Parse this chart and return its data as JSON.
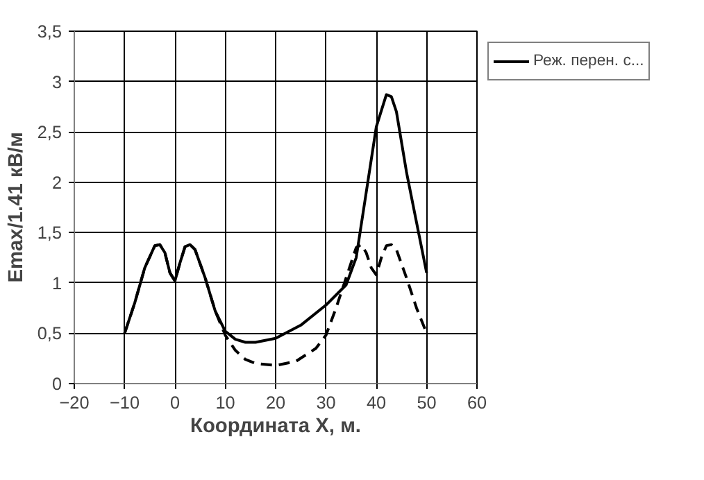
{
  "chart_data": {
    "type": "line",
    "xlabel": "Координата X, м.",
    "ylabel": "Emax/1.41 кВ/м",
    "xlim": [
      -20,
      60
    ],
    "xticks": [
      -20,
      -10,
      0,
      10,
      20,
      30,
      40,
      50,
      60
    ],
    "ylim": [
      0,
      3.5
    ],
    "yticks": [
      0,
      {
        "value": 0.5,
        "label": "0,5"
      },
      1,
      {
        "value": 1.5,
        "label": "1,5"
      },
      2,
      {
        "value": 2.5,
        "label": "2,5"
      },
      3,
      {
        "value": 3.5,
        "label": "3,5"
      }
    ],
    "grid": true,
    "legend": "right",
    "marker": "none",
    "series": [
      {
        "name": "Реж. перен. с...",
        "color": "#000000",
        "line_style": "solid",
        "x": [
          -10,
          -8,
          -6,
          -4,
          -3,
          -2,
          -1,
          0,
          1,
          2,
          3,
          4,
          6,
          8,
          10,
          12,
          14,
          16,
          20,
          25,
          30,
          34,
          36,
          38,
          40,
          42,
          43,
          44,
          46,
          48,
          50
        ],
        "values": [
          0.5,
          0.8,
          1.15,
          1.37,
          1.38,
          1.3,
          1.1,
          1.02,
          1.2,
          1.36,
          1.38,
          1.33,
          1.05,
          0.72,
          0.52,
          0.44,
          0.41,
          0.41,
          0.45,
          0.58,
          0.78,
          0.98,
          1.25,
          1.9,
          2.55,
          2.87,
          2.85,
          2.7,
          2.1,
          1.6,
          1.1
        ]
      },
      {
        "color": "#000000",
        "line_style": "dashed",
        "x": [
          -10,
          -8,
          -6,
          -4,
          -3,
          -2,
          -1,
          0,
          1,
          2,
          3,
          4,
          6,
          8,
          10,
          12,
          14,
          16,
          20,
          24,
          28,
          30,
          32,
          34,
          36,
          37,
          38,
          39,
          40,
          41,
          42,
          43,
          44,
          46,
          48,
          50
        ],
        "values": [
          0.5,
          0.8,
          1.15,
          1.37,
          1.38,
          1.3,
          1.1,
          1.02,
          1.2,
          1.36,
          1.38,
          1.33,
          1.05,
          0.72,
          0.48,
          0.33,
          0.24,
          0.2,
          0.18,
          0.22,
          0.35,
          0.48,
          0.75,
          1.05,
          1.35,
          1.38,
          1.3,
          1.15,
          1.08,
          1.25,
          1.37,
          1.38,
          1.33,
          1.05,
          0.75,
          0.5
        ]
      }
    ]
  }
}
